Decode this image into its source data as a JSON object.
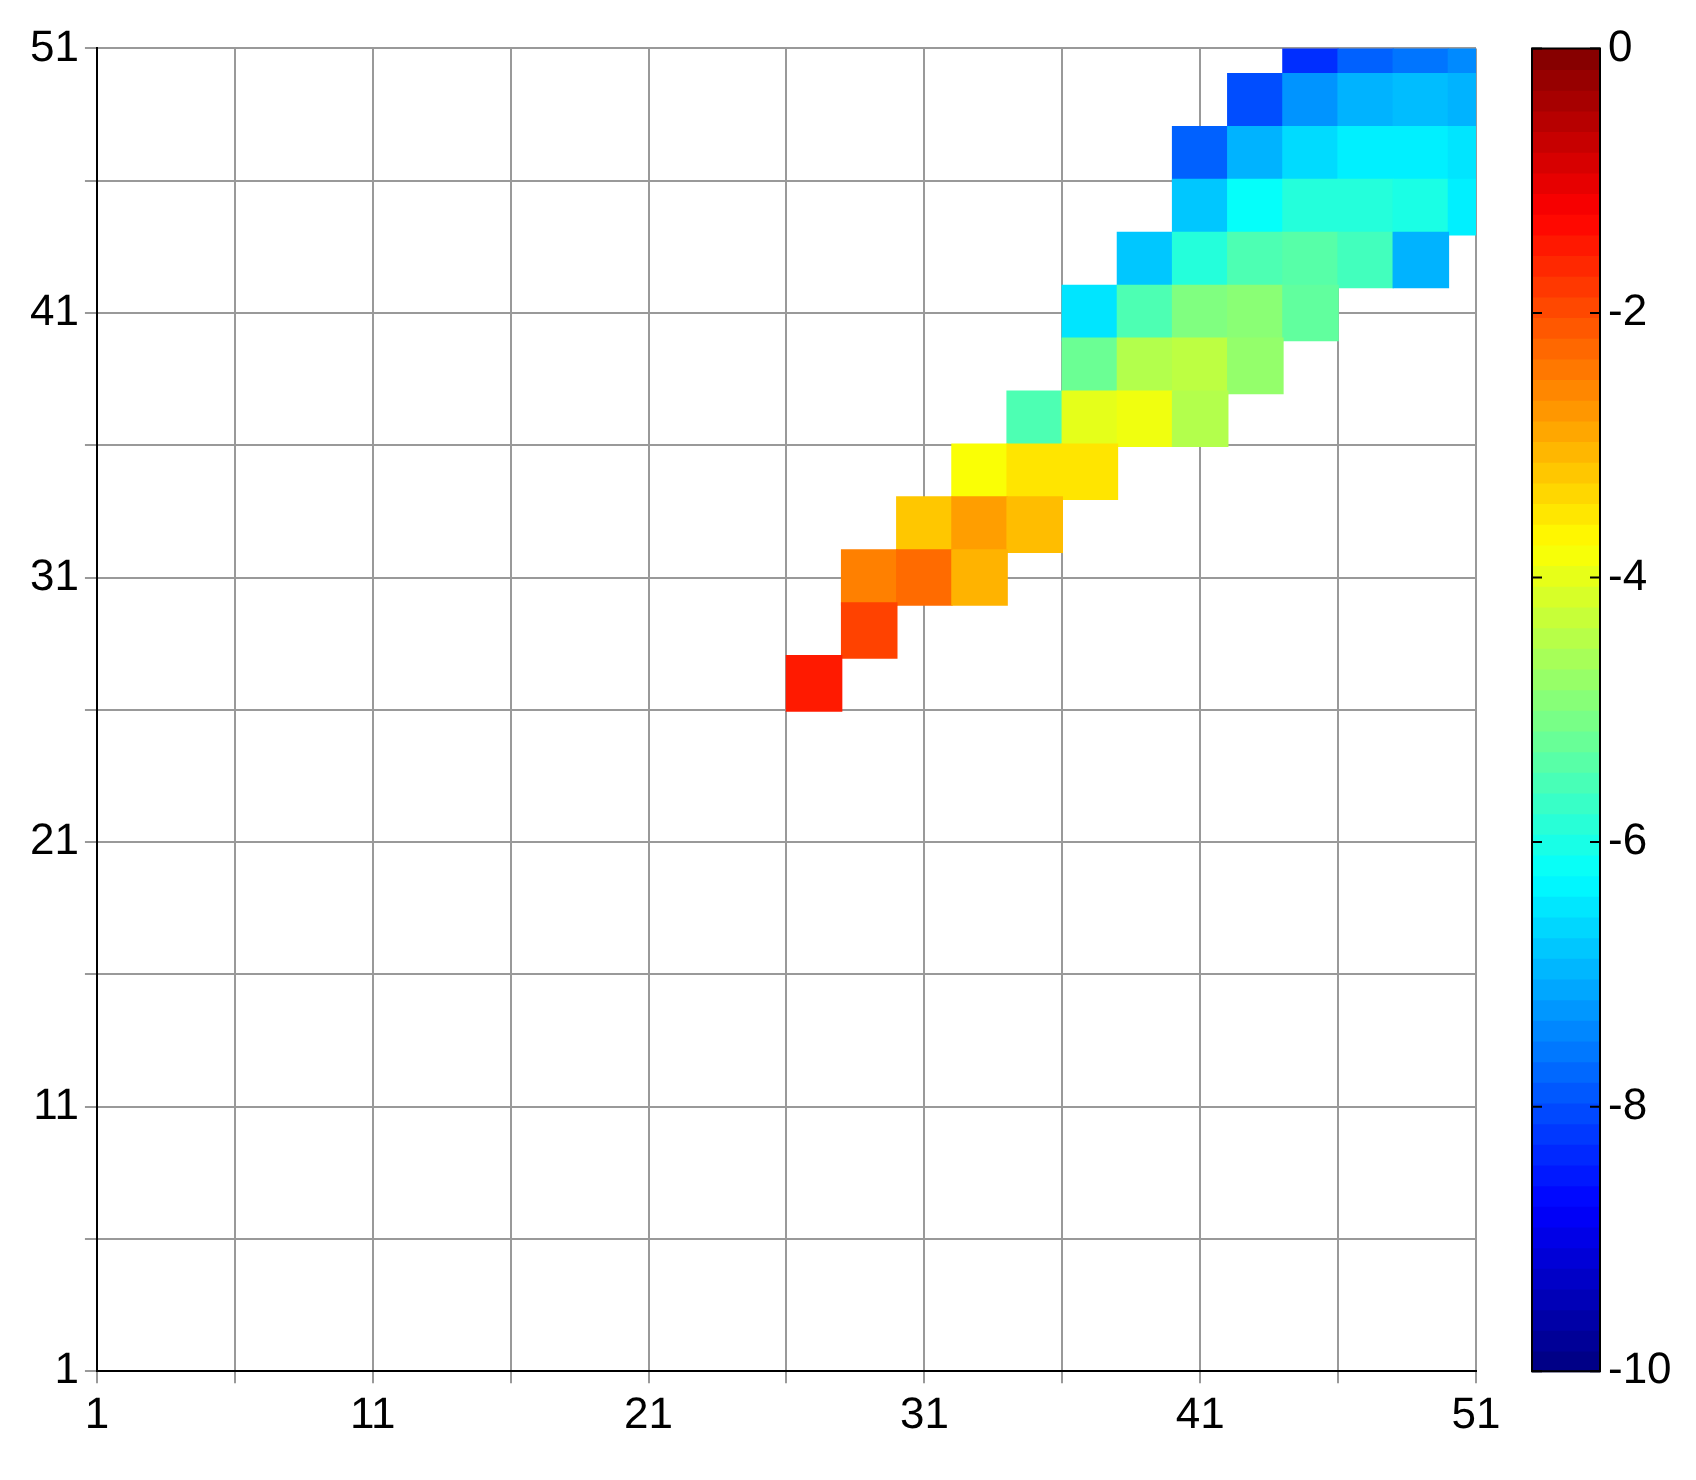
{
  "chart_data": {
    "type": "scatter",
    "marker": "square",
    "x": [
      45,
      47,
      49,
      51,
      43,
      45,
      47,
      49,
      51,
      41,
      43,
      45,
      47,
      49,
      51,
      41,
      43,
      45,
      47,
      49,
      51,
      39,
      41,
      43,
      45,
      47,
      49,
      37,
      39,
      41,
      43,
      45,
      37,
      39,
      41,
      43,
      35,
      37,
      39,
      41,
      33,
      35,
      37,
      31,
      33,
      35,
      29,
      31,
      33,
      29,
      27
    ],
    "values": [
      51,
      51,
      51,
      51,
      49,
      49,
      49,
      49,
      49,
      47,
      47,
      47,
      47,
      47,
      47,
      45,
      45,
      45,
      45,
      45,
      45,
      43,
      43,
      43,
      43,
      43,
      43,
      41,
      41,
      41,
      41,
      41,
      39,
      39,
      39,
      39,
      37,
      37,
      37,
      37,
      35,
      35,
      35,
      33,
      33,
      33,
      31,
      31,
      31,
      29,
      27
    ],
    "cvalues": [
      -8.3,
      -7.8,
      -7.6,
      -7.4,
      -8.0,
      -7.3,
      -7.0,
      -6.9,
      -7.0,
      -7.8,
      -7.0,
      -6.6,
      -6.4,
      -6.4,
      -6.5,
      -6.8,
      -6.2,
      -5.9,
      -5.9,
      -6.0,
      -6.4,
      -6.8,
      -5.9,
      -5.5,
      -5.4,
      -5.6,
      -7.0,
      -6.5,
      -5.5,
      -5.0,
      -4.9,
      -5.3,
      -5.2,
      -4.5,
      -4.4,
      -4.8,
      -5.5,
      -4.0,
      -3.9,
      -4.5,
      -3.8,
      -3.5,
      -3.5,
      -3.2,
      -2.8,
      -3.1,
      -2.5,
      -2.3,
      -3.0,
      -1.9,
      -1.5
    ],
    "xlim": [
      1,
      51
    ],
    "ylim": [
      1,
      51
    ],
    "xticks": [
      1,
      {
        "value": 6,
        "label": null
      },
      11,
      {
        "value": 16,
        "label": null
      },
      21,
      {
        "value": 26,
        "label": null
      },
      31,
      {
        "value": 36,
        "label": null
      },
      41,
      {
        "value": 46,
        "label": null
      },
      51
    ],
    "yticks": [
      1,
      {
        "value": 6,
        "label": null
      },
      11,
      {
        "value": 16,
        "label": null
      },
      21,
      {
        "value": 26,
        "label": null
      },
      31,
      {
        "value": 36,
        "label": null
      },
      41,
      {
        "value": 46,
        "label": null
      },
      51
    ],
    "clim": [
      -10,
      0
    ],
    "cticks": [
      -10,
      -8,
      -6,
      -4,
      -2,
      0
    ],
    "grid": true
  }
}
